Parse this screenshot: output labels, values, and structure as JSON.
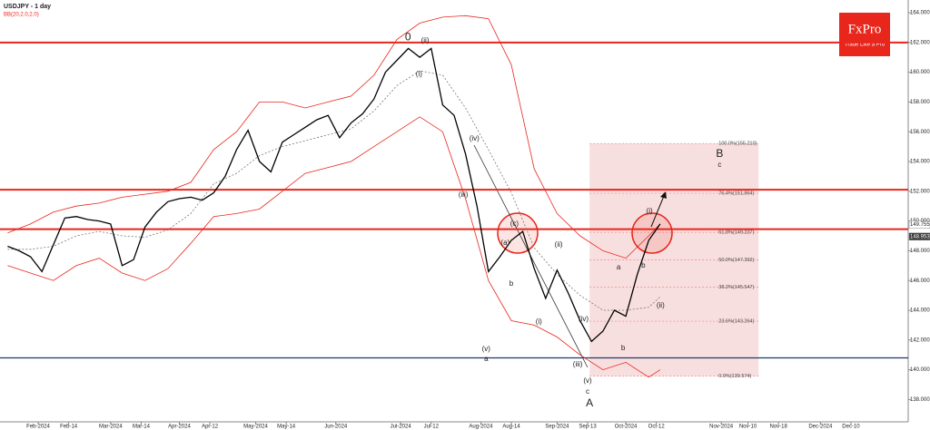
{
  "chart_data": {
    "type": "line",
    "title": "USDJPY - 1 day",
    "subtitle": "BB(20,2.0,2.0)",
    "brand": {
      "name": "FxPro",
      "tagline": "Trade Like a Pro"
    },
    "xlim": [
      -2,
      236
    ],
    "ylim": [
      136.5,
      164.55
    ],
    "xticks": [
      {
        "value": 8,
        "label": "Feb-2024"
      },
      {
        "value": 16,
        "label": "Feb-14"
      },
      {
        "value": 27,
        "label": "Mar-2024"
      },
      {
        "value": 35,
        "label": "Mar-14"
      },
      {
        "value": 45,
        "label": "Apr-2024"
      },
      {
        "value": 53,
        "label": "Apr-12"
      },
      {
        "value": 65,
        "label": "May-2024"
      },
      {
        "value": 73,
        "label": "May-14"
      },
      {
        "value": 86,
        "label": "Jun-2024"
      },
      {
        "value": 103,
        "label": "Jul-2024"
      },
      {
        "value": 111,
        "label": "Jul-12"
      },
      {
        "value": 124,
        "label": "Aug-2024"
      },
      {
        "value": 132,
        "label": "Aug-14"
      },
      {
        "value": 144,
        "label": "Sep-2024"
      },
      {
        "value": 152,
        "label": "Sep-13"
      },
      {
        "value": 162,
        "label": "Oct-2024"
      },
      {
        "value": 170,
        "label": "Oct-12"
      },
      {
        "value": 187,
        "label": "Nov-2024"
      },
      {
        "value": 194,
        "label": "Nov-10"
      },
      {
        "value": 202,
        "label": "Nov-18"
      },
      {
        "value": 213,
        "label": "Dec-2024"
      },
      {
        "value": 221,
        "label": "Dec-10"
      }
    ],
    "yticks": [
      {
        "value": 138,
        "label": "138.000"
      },
      {
        "value": 140,
        "label": "140.000"
      },
      {
        "value": 142,
        "label": "142.000"
      },
      {
        "value": 144,
        "label": "144.000"
      },
      {
        "value": 146,
        "label": "146.000"
      },
      {
        "value": 148,
        "label": "148.000"
      },
      {
        "value": 150,
        "label": "150.000"
      },
      {
        "value": 152,
        "label": "152.000"
      },
      {
        "value": 154,
        "label": "154.000"
      },
      {
        "value": 156,
        "label": "156.000"
      },
      {
        "value": 158,
        "label": "158.000"
      },
      {
        "value": 160,
        "label": "160.000"
      },
      {
        "value": 162,
        "label": "162.000"
      },
      {
        "value": 164,
        "label": "164.000"
      }
    ],
    "x": [
      0,
      3,
      6,
      9,
      12,
      15,
      18,
      21,
      24,
      27,
      30,
      33,
      36,
      39,
      42,
      45,
      48,
      51,
      54,
      57,
      60,
      63,
      66,
      69,
      72,
      75,
      78,
      81,
      84,
      87,
      90,
      93,
      96,
      99,
      102,
      105,
      108,
      111,
      114,
      117,
      120,
      123,
      126,
      129,
      132,
      135,
      138,
      141,
      144,
      147,
      150,
      153,
      156,
      159,
      162,
      165,
      168,
      171
    ],
    "series": [
      {
        "color": "#000000",
        "values": [
          148.3,
          148.0,
          147.6,
          146.6,
          148.4,
          150.2,
          150.3,
          150.1,
          150.0,
          149.8,
          147.0,
          147.4,
          149.6,
          150.6,
          151.3,
          151.5,
          151.6,
          151.4,
          151.9,
          153.0,
          154.8,
          156.1,
          154.0,
          153.3,
          155.3,
          155.8,
          156.3,
          156.8,
          157.1,
          155.6,
          156.6,
          157.2,
          158.2,
          160.0,
          160.8,
          161.6,
          161.0,
          161.6,
          157.8,
          157.1,
          154.5,
          151.0,
          146.6,
          147.6,
          148.7,
          149.3,
          146.8,
          144.8,
          146.7,
          145.1,
          143.3,
          141.9,
          142.6,
          144.0,
          143.6,
          146.4,
          148.7,
          149.8
        ]
      }
    ],
    "bands": {
      "color": "#e8261c",
      "x": [
        0,
        6,
        12,
        18,
        24,
        30,
        36,
        42,
        48,
        54,
        60,
        66,
        72,
        78,
        84,
        90,
        96,
        102,
        108,
        114,
        120,
        126,
        132,
        138,
        144,
        150,
        156,
        162,
        168,
        171
      ],
      "upper": [
        149.2,
        149.8,
        150.6,
        151.0,
        151.2,
        151.6,
        151.8,
        152.0,
        152.6,
        154.8,
        156.0,
        158.0,
        158.0,
        157.6,
        158.0,
        158.4,
        159.8,
        162.2,
        163.3,
        163.7,
        163.8,
        163.6,
        160.5,
        153.5,
        150.5,
        149.0,
        148.0,
        147.5,
        149.0,
        149.8
      ],
      "middle": [
        148.1,
        148.1,
        148.3,
        149.0,
        149.3,
        149.0,
        148.9,
        149.4,
        150.5,
        152.5,
        153.2,
        154.4,
        155.0,
        155.4,
        155.8,
        156.2,
        157.4,
        159.1,
        160.1,
        159.8,
        157.6,
        154.8,
        151.9,
        148.2,
        146.4,
        145.0,
        144.0,
        144.0,
        144.2,
        144.9
      ],
      "lower": [
        147.0,
        146.5,
        146.0,
        147.0,
        147.5,
        146.5,
        146.0,
        146.8,
        148.5,
        150.3,
        150.5,
        150.8,
        152.0,
        153.2,
        153.6,
        154.0,
        155.0,
        156.0,
        157.0,
        156.0,
        151.5,
        146.0,
        143.3,
        143.0,
        142.2,
        141.0,
        140.0,
        140.5,
        139.5,
        140.0
      ]
    },
    "levels": [
      {
        "value": 162.0,
        "color": "#e8261c"
      },
      {
        "value": 152.1,
        "color": "#e8261c"
      },
      {
        "value": 149.45,
        "color": "#e8261c"
      },
      {
        "value": 140.8,
        "color": "#1f3a6b"
      }
    ],
    "price_labels": [
      149.755,
      148.953
    ],
    "fib": {
      "x": [
        152.5,
        196.8
      ],
      "levels": [
        {
          "value": 155.21,
          "label": "100.0%(155.210)"
        },
        {
          "value": 151.864,
          "label": "76.4%(151.864)"
        },
        {
          "value": 149.237,
          "label": "61.8%(149.237)"
        },
        {
          "value": 147.392,
          "label": "50.0%(147.392)"
        },
        {
          "value": 145.547,
          "label": "38.2%(145.547)"
        },
        {
          "value": 143.264,
          "label": "23.6%(143.264)"
        },
        {
          "value": 139.574,
          "label": "0.0%(139.574)"
        }
      ]
    },
    "annotations": [
      {
        "text": "0",
        "x": 104.9,
        "y": 162.35
      },
      {
        "text": "(ii)",
        "x": 109.4,
        "y": 162.11
      },
      {
        "text": "(i)",
        "x": 107.8,
        "y": 159.85
      },
      {
        "text": "(iii)",
        "x": 119.4,
        "y": 151.74
      },
      {
        "text": "(iv)",
        "x": 122.3,
        "y": 155.52
      },
      {
        "text": "(a)",
        "x": 130.4,
        "y": 148.51
      },
      {
        "text": "(c)",
        "x": 132.8,
        "y": 149.79
      },
      {
        "text": "b",
        "x": 132.0,
        "y": 145.77
      },
      {
        "text": "(ii)",
        "x": 144.4,
        "y": 148.39
      },
      {
        "text": "(i)",
        "x": 139.2,
        "y": 143.21
      },
      {
        "text": "(iv)",
        "x": 150.9,
        "y": 143.39
      },
      {
        "text": "(iii)",
        "x": 149.4,
        "y": 140.34
      },
      {
        "text": "(v)",
        "x": 125.4,
        "y": 141.38
      },
      {
        "text": "a",
        "x": 125.4,
        "y": 140.71
      },
      {
        "text": "(v)",
        "x": 152.0,
        "y": 139.24
      },
      {
        "text": "c",
        "x": 152.0,
        "y": 138.51
      },
      {
        "text": "A",
        "x": 152.5,
        "y": 137.72
      },
      {
        "text": "a",
        "x": 160.1,
        "y": 146.87
      },
      {
        "text": "b",
        "x": 161.3,
        "y": 141.44
      },
      {
        "text": "b",
        "x": 166.6,
        "y": 146.99
      },
      {
        "text": "(i)",
        "x": 168.2,
        "y": 150.65
      },
      {
        "text": "(ii)",
        "x": 171.1,
        "y": 144.3
      },
      {
        "text": "B",
        "x": 186.6,
        "y": 154.49
      },
      {
        "text": "c",
        "x": 186.6,
        "y": 153.76
      }
    ]
  }
}
